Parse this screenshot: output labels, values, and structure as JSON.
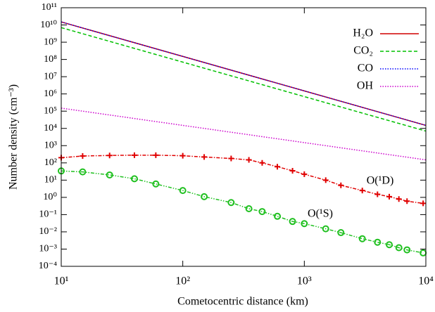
{
  "chart_data": {
    "type": "line",
    "xlabel": "Cometocentric distance (km)",
    "ylabel": "Number density (cm⁻³)",
    "xscale": "log",
    "yscale": "log",
    "xlim": [
      10,
      10000
    ],
    "ylim": [
      0.0001,
      100000000000
    ],
    "xticks": [
      {
        "value": 10,
        "label": "10¹"
      },
      {
        "value": 100,
        "label": "10²"
      },
      {
        "value": 1000,
        "label": "10³"
      },
      {
        "value": 10000,
        "label": "10⁴"
      }
    ],
    "yticks": [
      {
        "value": 0.0001,
        "label": "10⁻⁴"
      },
      {
        "value": 0.001,
        "label": "10⁻³"
      },
      {
        "value": 0.01,
        "label": "10⁻²"
      },
      {
        "value": 0.1,
        "label": "10⁻¹"
      },
      {
        "value": 1,
        "label": "10⁰"
      },
      {
        "value": 10,
        "label": "10¹"
      },
      {
        "value": 100,
        "label": "10²"
      },
      {
        "value": 1000,
        "label": "10³"
      },
      {
        "value": 10000,
        "label": "10⁴"
      },
      {
        "value": 100000,
        "label": "10⁵"
      },
      {
        "value": 1000000,
        "label": "10⁶"
      },
      {
        "value": 10000000,
        "label": "10⁷"
      },
      {
        "value": 100000000,
        "label": "10⁸"
      },
      {
        "value": 1000000000,
        "label": "10⁹"
      },
      {
        "value": 10000000000,
        "label": "10¹⁰"
      },
      {
        "value": 100000000000,
        "label": "10¹¹"
      }
    ],
    "legend": "upper right",
    "series": [
      {
        "name": "H₂O",
        "color": "#d00000",
        "dash": "solid",
        "x": [
          10,
          100,
          1000,
          10000
        ],
        "values": [
          15000000000,
          150000000,
          1500000,
          15000
        ]
      },
      {
        "name": "CO₂",
        "color": "#00c000",
        "dash": "dashed",
        "x": [
          10,
          100,
          1000,
          10000
        ],
        "values": [
          7000000000,
          70000000,
          700000,
          7000
        ]
      },
      {
        "name": "CO",
        "color": "#0000ff",
        "dash": "dotted",
        "x": [
          10,
          100,
          1000,
          10000
        ],
        "values": [
          15000000000,
          150000000,
          1500000,
          15000
        ]
      },
      {
        "name": "OH",
        "color": "#cc00cc",
        "dash": "dotted",
        "x": [
          10,
          100,
          1000,
          10000
        ],
        "values": [
          150000,
          15000,
          1500,
          150
        ]
      },
      {
        "name": "O(¹D)",
        "color": "#e00000",
        "dash": "dashdot",
        "marker": "plus",
        "x": [
          10,
          15,
          25,
          40,
          60,
          100,
          150,
          250,
          350,
          450,
          600,
          800,
          1000,
          1500,
          2000,
          3000,
          4000,
          5000,
          6000,
          7000,
          9500
        ],
        "values": [
          200,
          250,
          270,
          280,
          280,
          260,
          220,
          180,
          150,
          100,
          60,
          35,
          22,
          10,
          5,
          2.5,
          1.5,
          1.1,
          0.8,
          0.6,
          0.45
        ]
      },
      {
        "name": "O(¹S)",
        "color": "#20c020",
        "dash": "dashdotdot",
        "marker": "circle",
        "x": [
          10,
          15,
          25,
          40,
          60,
          100,
          150,
          250,
          350,
          450,
          600,
          800,
          1000,
          1500,
          2000,
          3000,
          4000,
          5000,
          6000,
          7000,
          9500
        ],
        "values": [
          34,
          30,
          20,
          12,
          6,
          2.5,
          1.1,
          0.5,
          0.22,
          0.15,
          0.08,
          0.04,
          0.03,
          0.015,
          0.009,
          0.004,
          0.0025,
          0.0018,
          0.0012,
          0.0009,
          0.0006
        ]
      }
    ]
  }
}
